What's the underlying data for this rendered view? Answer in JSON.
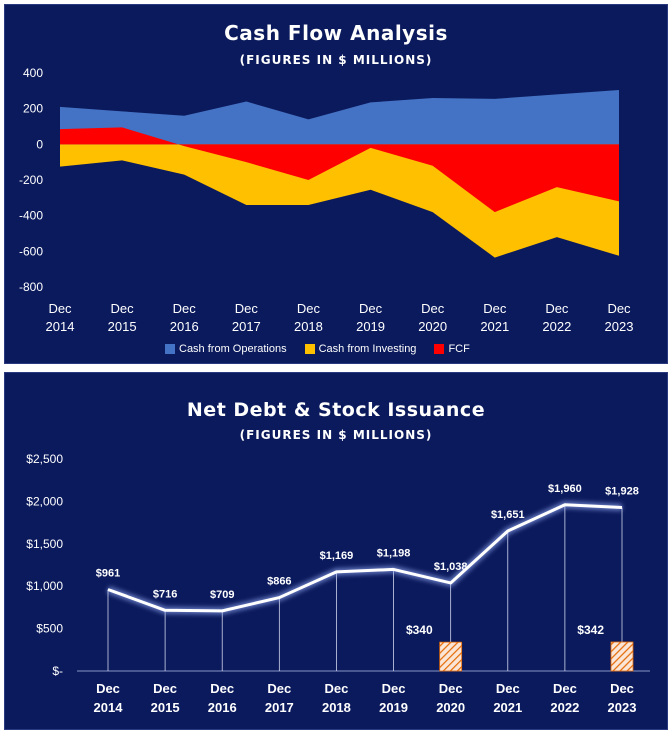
{
  "chart_data": [
    {
      "type": "area",
      "title": "Cash Flow Analysis",
      "subtitle": "(FIGURES IN $ MILLIONS)",
      "categories": [
        [
          "Dec",
          "2014"
        ],
        [
          "Dec",
          "2015"
        ],
        [
          "Dec",
          "2016"
        ],
        [
          "Dec",
          "2017"
        ],
        [
          "Dec",
          "2018"
        ],
        [
          "Dec",
          "2019"
        ],
        [
          "Dec",
          "2020"
        ],
        [
          "Dec",
          "2021"
        ],
        [
          "Dec",
          "2022"
        ],
        [
          "Dec",
          "2023"
        ]
      ],
      "ylim": [
        -800,
        400
      ],
      "yticks": [
        "400",
        "200",
        "0",
        "-200",
        "-400",
        "-600",
        "-800"
      ],
      "series": [
        {
          "name": "Cash from Operations",
          "color": "#4472c4",
          "values": [
            210,
            185,
            160,
            240,
            140,
            235,
            260,
            255,
            280,
            305
          ]
        },
        {
          "name": "Cash from Investing",
          "color": "#ffc000",
          "values": [
            -125,
            -90,
            -170,
            -340,
            -340,
            -255,
            -380,
            -635,
            -520,
            -625
          ]
        },
        {
          "name": "FCF",
          "color": "#ff0000",
          "values": [
            85,
            95,
            -10,
            -100,
            -200,
            -20,
            -120,
            -380,
            -240,
            -320
          ]
        }
      ],
      "legend_position": "bottom"
    },
    {
      "type": "line",
      "title": "Net Debt & Stock Issuance",
      "subtitle": "(FIGURES IN $ MILLIONS)",
      "categories": [
        [
          "Dec",
          "2014"
        ],
        [
          "Dec",
          "2015"
        ],
        [
          "Dec",
          "2016"
        ],
        [
          "Dec",
          "2017"
        ],
        [
          "Dec",
          "2018"
        ],
        [
          "Dec",
          "2019"
        ],
        [
          "Dec",
          "2020"
        ],
        [
          "Dec",
          "2021"
        ],
        [
          "Dec",
          "2022"
        ],
        [
          "Dec",
          "2023"
        ]
      ],
      "ylim": [
        0,
        2500
      ],
      "yticks": [
        "$2,500",
        "$2,000",
        "$1,500",
        "$1,000",
        "$500",
        "$-"
      ],
      "series": [
        {
          "name": "Net Debt",
          "color": "#ffffff",
          "values": [
            961,
            716,
            709,
            866,
            1169,
            1198,
            1038,
            1651,
            1960,
            1928
          ],
          "labels": [
            "$961",
            "$716",
            "$709",
            "$866",
            "$1,169",
            "$1,198",
            "$1,038",
            "$1,651",
            "$1,960",
            "$1,928"
          ]
        },
        {
          "name": "Stock Issuance",
          "color": "#f4b183",
          "values": [
            null,
            null,
            null,
            null,
            null,
            null,
            340,
            null,
            null,
            342
          ],
          "labels": [
            "",
            "",
            "",
            "",
            "",
            "",
            "$340",
            "",
            "",
            "$342"
          ]
        }
      ]
    }
  ]
}
